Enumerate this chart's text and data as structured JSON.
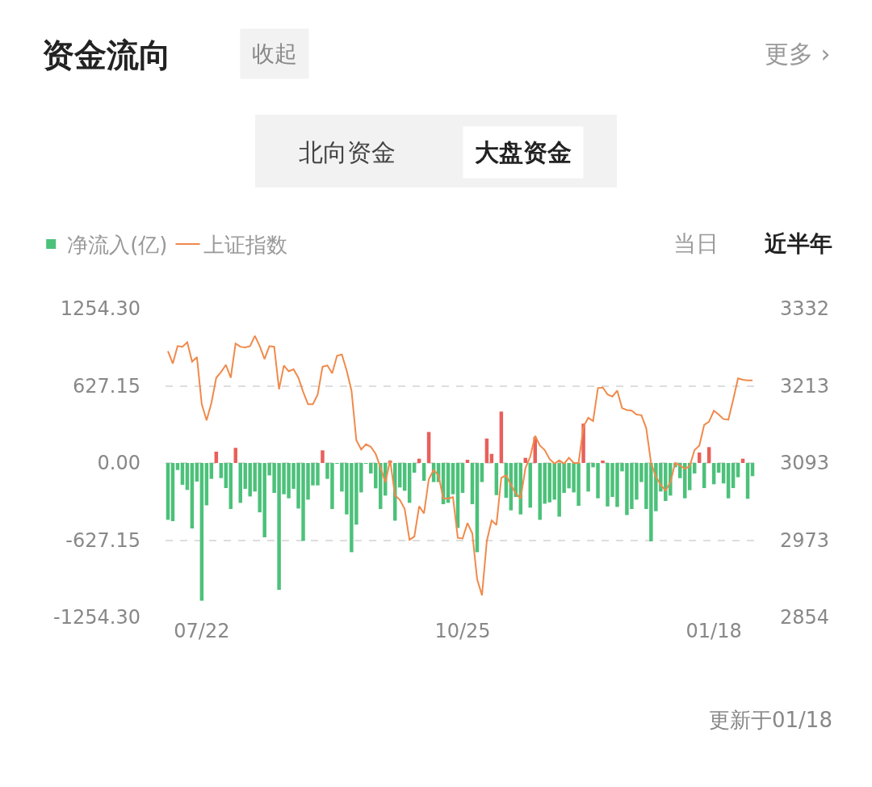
{
  "chart_data": {
    "type": "bar",
    "title": "资金流向",
    "annotations": [
      "收起",
      "更多 ›",
      "北向资金",
      "大盘资金",
      "当日",
      "近半年",
      "更新于01/18"
    ],
    "categories": [
      null,
      null,
      null,
      null,
      null,
      null,
      null,
      "07/22",
      null,
      null,
      null,
      null,
      null,
      null,
      null,
      null,
      null,
      null,
      null,
      null,
      null,
      null,
      null,
      null,
      null,
      null,
      null,
      null,
      null,
      null,
      null,
      null,
      null,
      null,
      null,
      null,
      null,
      null,
      null,
      null,
      null,
      null,
      null,
      null,
      null,
      null,
      null,
      null,
      null,
      null,
      null,
      null,
      null,
      null,
      null,
      null,
      null,
      null,
      null,
      null,
      null,
      "10/25",
      null,
      null,
      null,
      null,
      null,
      null,
      null,
      null,
      null,
      null,
      null,
      null,
      null,
      null,
      null,
      null,
      null,
      null,
      null,
      null,
      null,
      null,
      null,
      null,
      null,
      null,
      null,
      null,
      null,
      null,
      null,
      null,
      null,
      null,
      null,
      null,
      null,
      null,
      null,
      null,
      null,
      null,
      null,
      null,
      null,
      null,
      null,
      null,
      null,
      null,
      null,
      "01/18",
      null,
      null,
      null,
      null,
      null,
      null,
      null,
      null
    ],
    "series": [
      {
        "name": "净流入(亿)",
        "values": [
          -462,
          -473,
          -57,
          -177,
          -219,
          -532,
          -151,
          -1119,
          -344,
          -129,
          92,
          -123,
          -204,
          -374,
          123,
          -324,
          -210,
          -272,
          -232,
          -401,
          -604,
          -101,
          -243,
          -1031,
          -254,
          -287,
          -210,
          -370,
          -633,
          -298,
          -182,
          -182,
          103,
          -129,
          -374,
          -5,
          -232,
          -418,
          -725,
          -501,
          -239,
          -5,
          -85,
          -206,
          -374,
          -265,
          20,
          -469,
          -199,
          -226,
          -324,
          -79,
          35,
          -145,
          252,
          -155,
          -155,
          -335,
          -324,
          -254,
          -528,
          -243,
          26,
          -335,
          -725,
          -155,
          199,
          74,
          -261,
          418,
          -283,
          -385,
          -276,
          -418,
          42,
          -363,
          212,
          -462,
          -331,
          -320,
          -298,
          -436,
          -243,
          -206,
          -239,
          -348,
          320,
          -232,
          -35,
          -287,
          20,
          -353,
          -276,
          -357,
          -68,
          -423,
          -374,
          -298,
          -155,
          -374,
          -637,
          -392,
          -232,
          -309,
          -265,
          -35,
          -123,
          -287,
          -221,
          -85,
          85,
          -204,
          129,
          -173,
          -79,
          -166,
          -287,
          -204,
          -116,
          35,
          -291,
          -107
        ],
        "colors": [
          "#4cc17a",
          "#4cc17a",
          "#4cc17a",
          "#4cc17a",
          "#4cc17a",
          "#4cc17a",
          "#4cc17a",
          "#4cc17a",
          "#4cc17a",
          "#4cc17a",
          "#e8605a",
          "#4cc17a",
          "#4cc17a",
          "#4cc17a",
          "#e8605a",
          "#4cc17a",
          "#4cc17a",
          "#4cc17a",
          "#4cc17a",
          "#4cc17a",
          "#4cc17a",
          "#4cc17a",
          "#4cc17a",
          "#4cc17a",
          "#4cc17a",
          "#4cc17a",
          "#4cc17a",
          "#4cc17a",
          "#4cc17a",
          "#4cc17a",
          "#4cc17a",
          "#4cc17a",
          "#e8605a",
          "#4cc17a",
          "#4cc17a",
          "#4cc17a",
          "#4cc17a",
          "#4cc17a",
          "#4cc17a",
          "#4cc17a",
          "#4cc17a",
          "#4cc17a",
          "#4cc17a",
          "#4cc17a",
          "#4cc17a",
          "#4cc17a",
          "#e8605a",
          "#4cc17a",
          "#4cc17a",
          "#4cc17a",
          "#4cc17a",
          "#4cc17a",
          "#e8605a",
          "#4cc17a",
          "#e8605a",
          "#4cc17a",
          "#4cc17a",
          "#4cc17a",
          "#4cc17a",
          "#4cc17a",
          "#4cc17a",
          "#4cc17a",
          "#e8605a",
          "#4cc17a",
          "#4cc17a",
          "#4cc17a",
          "#e8605a",
          "#e8605a",
          "#4cc17a",
          "#e8605a",
          "#4cc17a",
          "#4cc17a",
          "#4cc17a",
          "#4cc17a",
          "#e8605a",
          "#4cc17a",
          "#e8605a",
          "#4cc17a",
          "#4cc17a",
          "#4cc17a",
          "#4cc17a",
          "#4cc17a",
          "#4cc17a",
          "#4cc17a",
          "#4cc17a",
          "#4cc17a",
          "#e8605a",
          "#4cc17a",
          "#4cc17a",
          "#4cc17a",
          "#e8605a",
          "#4cc17a",
          "#4cc17a",
          "#4cc17a",
          "#4cc17a",
          "#4cc17a",
          "#4cc17a",
          "#4cc17a",
          "#4cc17a",
          "#4cc17a",
          "#4cc17a",
          "#4cc17a",
          "#4cc17a",
          "#4cc17a",
          "#4cc17a",
          "#4cc17a",
          "#4cc17a",
          "#4cc17a",
          "#4cc17a",
          "#4cc17a",
          "#e8605a",
          "#4cc17a",
          "#e8605a",
          "#4cc17a",
          "#4cc17a",
          "#4cc17a",
          "#4cc17a",
          "#4cc17a",
          "#4cc17a",
          "#e8605a",
          "#4cc17a",
          "#4cc17a"
        ]
      },
      {
        "name": "上证指数",
        "type": "line",
        "axis": "y2",
        "color": "#f08a4b",
        "values": [
          3266,
          3247,
          3274,
          3273,
          3280,
          3250,
          3257,
          3184,
          3159,
          3186,
          3225,
          3234,
          3245,
          3225,
          3278,
          3273,
          3272,
          3274,
          3290,
          3274,
          3254,
          3274,
          3273,
          3207,
          3244,
          3235,
          3238,
          3225,
          3203,
          3184,
          3184,
          3199,
          3242,
          3244,
          3232,
          3259,
          3261,
          3236,
          3205,
          3128,
          3114,
          3122,
          3118,
          3107,
          3086,
          3063,
          3097,
          3043,
          3036,
          3022,
          2974,
          2979,
          3026,
          3015,
          3068,
          3082,
          3074,
          3038,
          3038,
          3040,
          2977,
          2976,
          3000,
          2984,
          2913,
          2888,
          2972,
          3004,
          2997,
          3070,
          3074,
          3059,
          3046,
          3038,
          3085,
          3103,
          3135,
          3120,
          3113,
          3099,
          3092,
          3097,
          3092,
          3101,
          3093,
          3093,
          3149,
          3163,
          3158,
          3209,
          3210,
          3199,
          3196,
          3205,
          3178,
          3175,
          3174,
          3168,
          3167,
          3147,
          3093,
          3072,
          3059,
          3050,
          3063,
          3093,
          3089,
          3084,
          3088,
          3113,
          3120,
          3152,
          3157,
          3174,
          3168,
          3161,
          3160,
          3191,
          3224,
          3222,
          3221,
          3221
        ]
      }
    ],
    "ylim": [
      -1254.3,
      1254.3
    ],
    "yticks": [
      {
        "value": -1254.3,
        "label": "-1254.30"
      },
      {
        "value": -627.15,
        "label": "-627.15"
      },
      {
        "value": 0,
        "label": "0.00"
      },
      {
        "value": 627.15,
        "label": "627.15"
      },
      {
        "value": 1254.3,
        "label": "1254.30"
      }
    ],
    "y2lim": [
      2854,
      3332
    ],
    "y2ticks": [
      2854,
      2973,
      3093,
      3213,
      3332
    ],
    "grid": "y",
    "legend": "top left"
  }
}
